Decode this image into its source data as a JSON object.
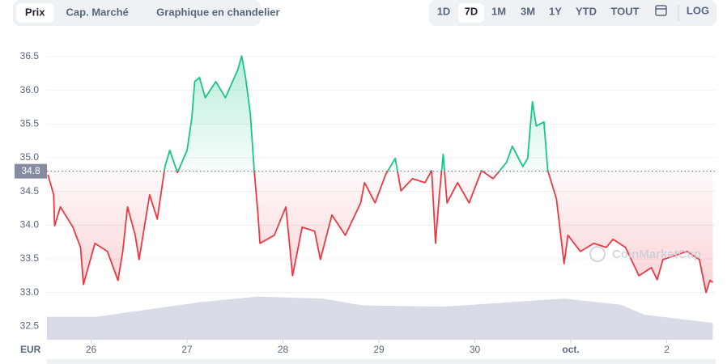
{
  "chart_data": {
    "type": "line",
    "tabs": [
      "Prix",
      "Cap. Marché",
      "Graphique en chandelier"
    ],
    "selected_tab": 0,
    "ranges": [
      "1D",
      "7D",
      "1M",
      "3M",
      "1Y",
      "YTD",
      "TOUT"
    ],
    "selected_range": 1,
    "log_button": "LOG",
    "unit": "EUR",
    "watermark": "CoinMarketCap",
    "x": [
      -0.45,
      -0.39,
      -0.38,
      -0.32,
      -0.19,
      -0.11,
      -0.08,
      0.04,
      0.17,
      0.28,
      0.33,
      0.38,
      0.46,
      0.5,
      0.61,
      0.69,
      0.77,
      0.82,
      0.9,
      1.0,
      1.05,
      1.08,
      1.13,
      1.19,
      1.3,
      1.4,
      1.53,
      1.57,
      1.61,
      1.66,
      1.7,
      1.74,
      1.76,
      1.91,
      2.03,
      2.1,
      2.2,
      2.33,
      2.39,
      2.51,
      2.65,
      2.81,
      2.85,
      2.96,
      3.07,
      3.17,
      3.23,
      3.35,
      3.48,
      3.55,
      3.59,
      3.63,
      3.67,
      3.71,
      3.82,
      3.94,
      4.07,
      4.19,
      4.33,
      4.39,
      4.5,
      4.55,
      4.6,
      4.64,
      4.72,
      4.76,
      4.85,
      4.89,
      4.93,
      4.97,
      5.1,
      5.24,
      5.37,
      5.44,
      5.57,
      5.71,
      5.84,
      5.9,
      5.96,
      6.09,
      6.21,
      6.34,
      6.41,
      6.45,
      6.48
    ],
    "values": [
      34.75,
      34.45,
      33.99,
      34.27,
      33.97,
      33.67,
      33.12,
      33.73,
      33.61,
      33.18,
      33.61,
      34.27,
      33.85,
      33.49,
      34.45,
      34.09,
      34.87,
      35.11,
      34.78,
      35.11,
      35.59,
      36.13,
      36.19,
      35.89,
      36.13,
      35.89,
      36.31,
      36.51,
      36.19,
      35.65,
      34.81,
      34.15,
      33.73,
      33.85,
      34.27,
      33.25,
      33.97,
      33.91,
      33.49,
      34.15,
      33.85,
      34.33,
      34.63,
      34.33,
      34.75,
      34.99,
      34.51,
      34.69,
      34.63,
      34.81,
      33.73,
      34.45,
      35.05,
      34.33,
      34.63,
      34.33,
      34.81,
      34.69,
      34.93,
      35.17,
      34.87,
      34.99,
      35.83,
      35.47,
      35.53,
      34.81,
      34.39,
      33.91,
      33.43,
      33.85,
      33.61,
      33.73,
      33.67,
      33.79,
      33.67,
      33.25,
      33.37,
      33.19,
      33.49,
      33.55,
      33.61,
      33.49,
      33.0,
      33.18,
      33.15
    ],
    "baseline": 34.8,
    "up_color": "#16c784",
    "down_color": "#ea3943",
    "volume": {
      "x": [
        -0.46,
        0.06,
        0.65,
        1.15,
        1.74,
        2.41,
        2.83,
        3.67,
        4.93,
        5.52,
        5.77,
        6.48
      ],
      "values": [
        32.64,
        32.64,
        32.76,
        32.86,
        32.94,
        32.91,
        32.81,
        32.79,
        32.91,
        32.82,
        32.67,
        32.55
      ],
      "color": "#cfd3e0"
    },
    "xlim": [
      -0.46,
      6.51
    ],
    "xticks": [
      {
        "value": 0,
        "label": "26"
      },
      {
        "value": 1,
        "label": "27"
      },
      {
        "value": 2,
        "label": "28"
      },
      {
        "value": 3,
        "label": "29"
      },
      {
        "value": 4,
        "label": "30"
      },
      {
        "value": 5,
        "label": "oct."
      },
      {
        "value": 6,
        "label": "2"
      }
    ],
    "ylim": [
      32.3,
      36.8
    ],
    "yticks": [
      32.5,
      {
        "value": 33,
        "label": "33.0"
      },
      33.5,
      {
        "value": 34,
        "label": "34.0"
      },
      34.5,
      {
        "value": 35,
        "label": "35.0"
      },
      35.5,
      {
        "value": 36,
        "label": "36.0"
      },
      36.5
    ],
    "grid": true
  }
}
